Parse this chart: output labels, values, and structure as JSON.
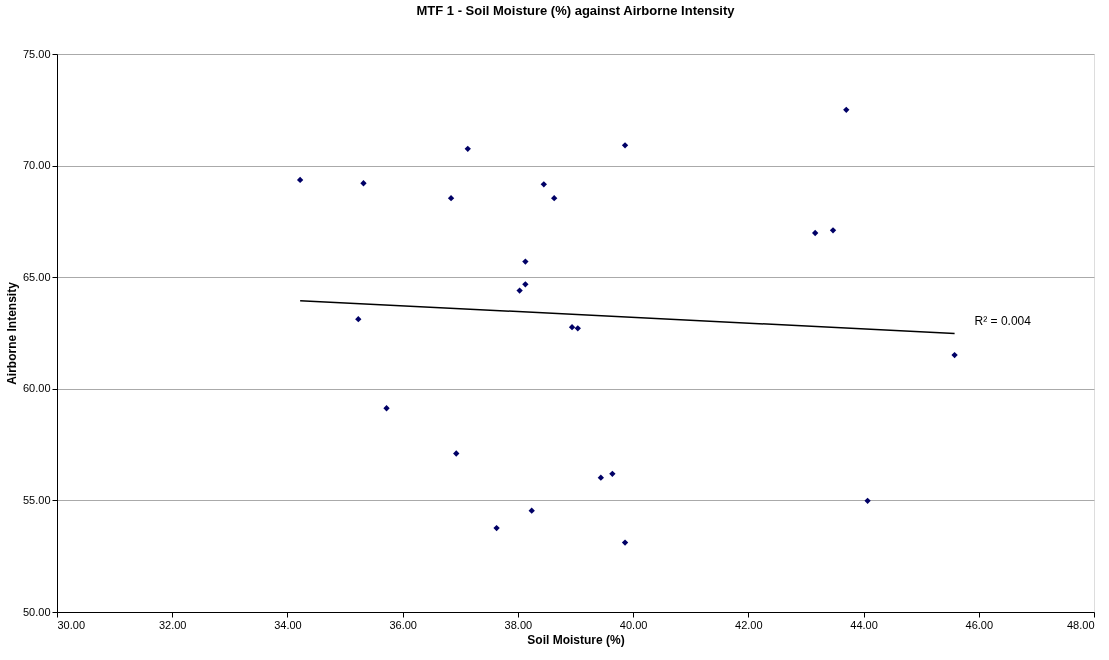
{
  "chart_data": {
    "type": "scatter",
    "title": "MTF 1 - Soil Moisture (%) against Airborne Intensity",
    "xlabel": "Soil Moisture (%)",
    "ylabel": "Airborne Intensity",
    "xlim": [
      30,
      48
    ],
    "ylim": [
      50,
      75
    ],
    "xticks": [
      {
        "value": 30,
        "label": "30.00"
      },
      {
        "value": 32,
        "label": "32.00"
      },
      {
        "value": 34,
        "label": "34.00"
      },
      {
        "value": 36,
        "label": "36.00"
      },
      {
        "value": 38,
        "label": "38.00"
      },
      {
        "value": 40,
        "label": "40.00"
      },
      {
        "value": 42,
        "label": "42.00"
      },
      {
        "value": 44,
        "label": "44.00"
      },
      {
        "value": 46,
        "label": "46.00"
      },
      {
        "value": 48,
        "label": "48.00"
      }
    ],
    "yticks": [
      {
        "value": 50,
        "label": "50.00"
      },
      {
        "value": 55,
        "label": "55.00"
      },
      {
        "value": 60,
        "label": "60.00"
      },
      {
        "value": 65,
        "label": "65.00"
      },
      {
        "value": 70,
        "label": "70.00"
      },
      {
        "value": 75,
        "label": "75.00"
      }
    ],
    "grid": "y",
    "series": [
      {
        "color": "#000066",
        "marker": "diamond",
        "x": [
          34.22,
          35.32,
          37.13,
          36.84,
          39.86,
          38.45,
          38.63,
          38.13,
          38.13,
          38.03,
          35.23,
          38.94,
          39.04,
          35.72,
          36.93,
          39.44,
          39.64,
          37.63,
          38.24,
          39.86,
          43.16,
          43.47,
          45.58,
          44.07,
          43.7
        ],
        "values": [
          69.36,
          69.21,
          70.75,
          68.54,
          70.91,
          69.16,
          68.54,
          65.7,
          64.68,
          64.4,
          63.12,
          62.76,
          62.71,
          59.13,
          57.1,
          56.02,
          56.19,
          53.76,
          54.54,
          53.11,
          66.98,
          67.1,
          61.51,
          54.98,
          72.5
        ]
      },
      {
        "type": "line",
        "color": "#000000",
        "line_style": "solid",
        "x": [
          34.22,
          45.58
        ],
        "values": [
          63.95,
          62.48
        ]
      }
    ],
    "annotations": [
      "R² = 0.004"
    ]
  }
}
